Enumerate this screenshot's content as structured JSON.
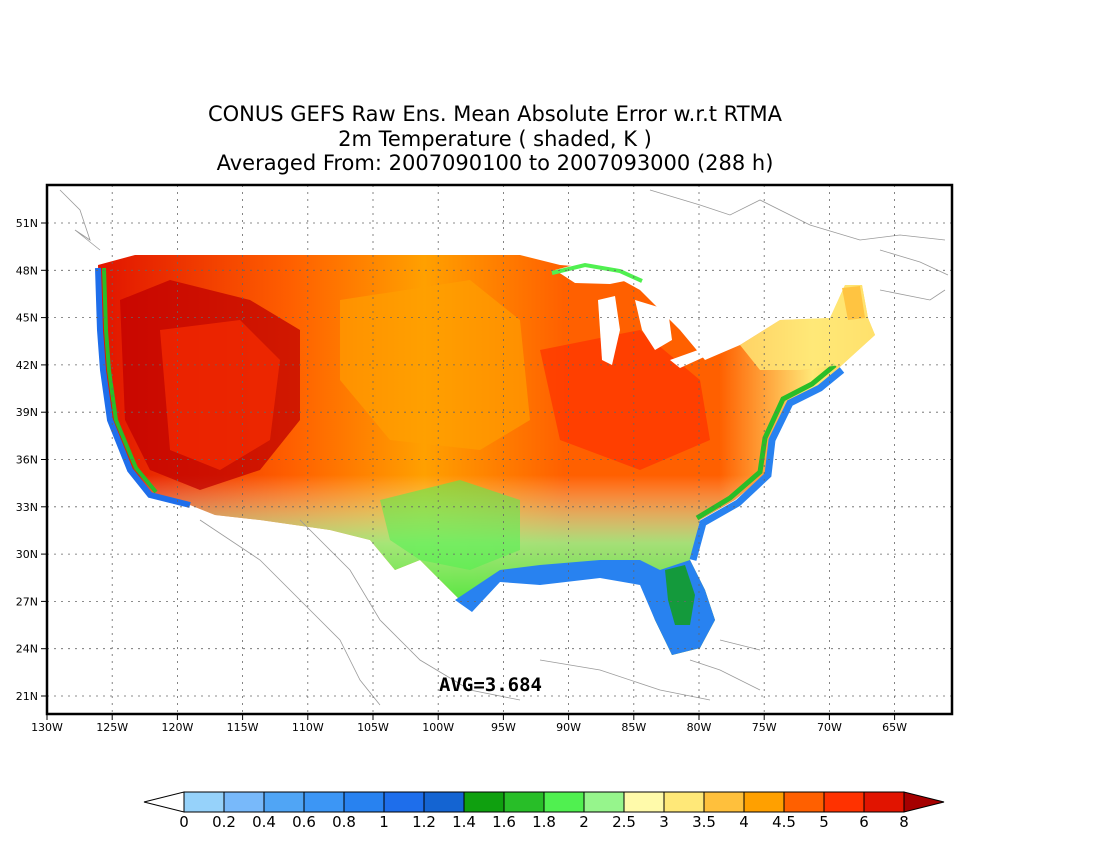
{
  "titles": {
    "line1": "CONUS GEFS Raw Ens. Mean Absolute Error w.r.t RTMA",
    "line2": "2m Temperature ( shaded, K )",
    "line3": "Averaged From: 2007090100 to 2007093000 (288 h)"
  },
  "map": {
    "lat_labels": [
      "51N",
      "48N",
      "45N",
      "42N",
      "39N",
      "36N",
      "33N",
      "30N",
      "27N",
      "24N",
      "21N"
    ],
    "lon_labels": [
      "130W",
      "125W",
      "120W",
      "115W",
      "110W",
      "105W",
      "100W",
      "95W",
      "90W",
      "85W",
      "80W",
      "75W",
      "70W",
      "65W"
    ],
    "region": "CONUS",
    "average_label": "AVG=3.684"
  },
  "colorbar": {
    "levels": [
      "0",
      "0.2",
      "0.4",
      "0.6",
      "0.8",
      "1",
      "1.2",
      "1.4",
      "1.6",
      "1.8",
      "2",
      "2.5",
      "3",
      "3.5",
      "4",
      "4.5",
      "5",
      "6",
      "8"
    ],
    "colors": [
      "#96d2fa",
      "#78b9fa",
      "#50a5f5",
      "#3c96f5",
      "#2882f0",
      "#1e6eeb",
      "#1464d2",
      "#0fa00f",
      "#28be28",
      "#50f050",
      "#96f58c",
      "#fffaaa",
      "#ffe878",
      "#ffc03c",
      "#ffa000",
      "#ff6000",
      "#ff3200",
      "#e11400",
      "#c00000"
    ],
    "overflow_low": "#ffffff",
    "overflow_high": "#a50000"
  }
}
